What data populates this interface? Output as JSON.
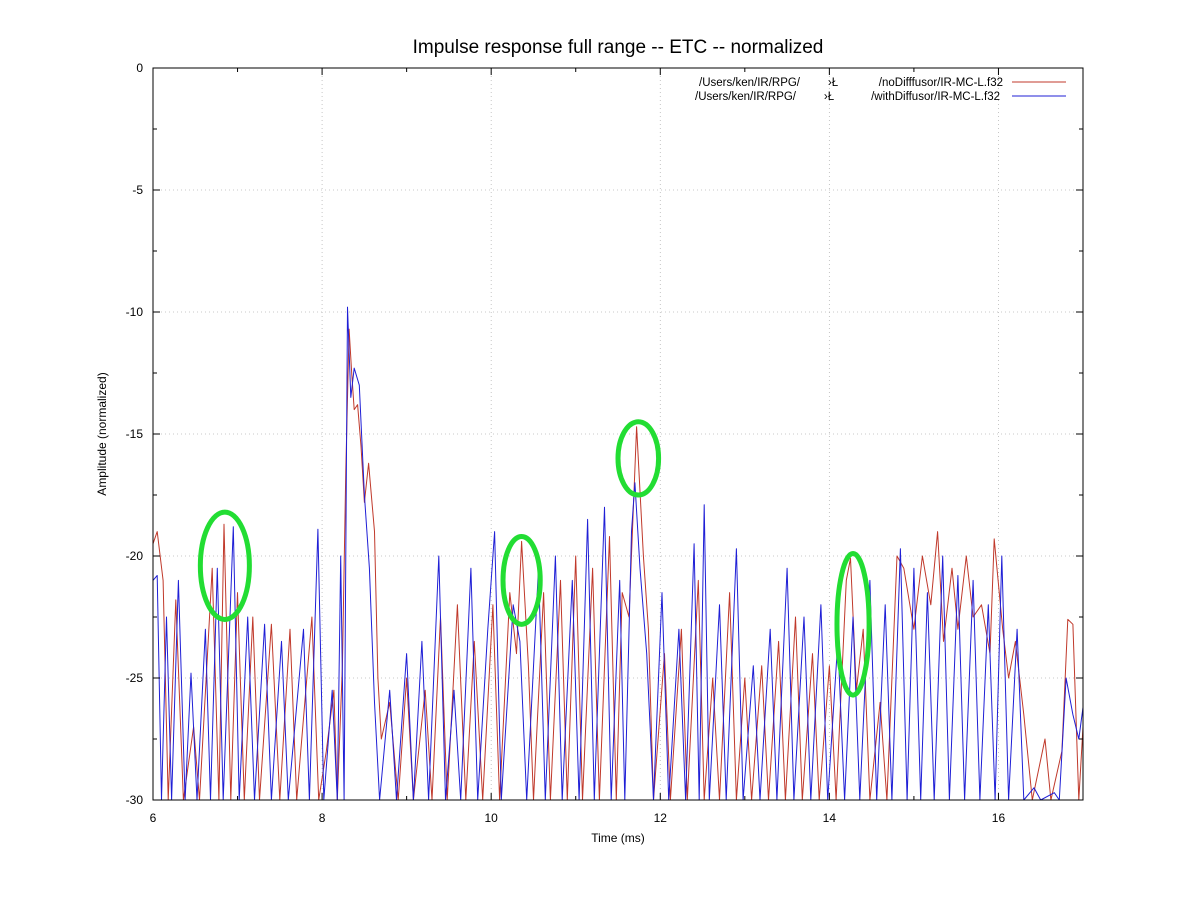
{
  "chart_data": {
    "type": "line",
    "title": "Impulse response full range -- ETC -- normalized",
    "xlabel": "Time (ms)",
    "ylabel": "Amplitude (normalized)",
    "xlim": [
      6,
      17
    ],
    "ylim": [
      -30,
      0
    ],
    "x_ticks": [
      "6",
      "8",
      "10",
      "12",
      "14",
      "16"
    ],
    "y_ticks": [
      "0",
      "-5",
      "-10",
      "-15",
      "-20",
      "-25",
      "-30"
    ],
    "grid": true,
    "legend_position": "top-right",
    "series": [
      {
        "name": "/Users/ken/IR/RPG/ ›Ł /noDifffusor/IR-MC-L.f32",
        "name_parts": [
          "/Users/ken/IR/RPG/",
          "›Ł",
          "/noDifffusor/IR-MC-L.f32"
        ],
        "color": "#c0392b",
        "peaks": [
          [
            6.0,
            -19.5
          ],
          [
            6.05,
            -19.0
          ],
          [
            6.12,
            -21.0
          ],
          [
            6.18,
            -30
          ],
          [
            6.27,
            -21.8
          ],
          [
            6.36,
            -30
          ],
          [
            6.48,
            -27.0
          ],
          [
            6.55,
            -30
          ],
          [
            6.7,
            -20.5
          ],
          [
            6.78,
            -30
          ],
          [
            6.84,
            -18.7
          ],
          [
            6.92,
            -30
          ],
          [
            7.0,
            -21.5
          ],
          [
            7.08,
            -30
          ],
          [
            7.18,
            -22.5
          ],
          [
            7.26,
            -30
          ],
          [
            7.4,
            -22.8
          ],
          [
            7.5,
            -30
          ],
          [
            7.62,
            -23.0
          ],
          [
            7.7,
            -30
          ],
          [
            7.88,
            -22.5
          ],
          [
            7.96,
            -30
          ],
          [
            8.05,
            -28.0
          ],
          [
            8.14,
            -25.5
          ],
          [
            8.18,
            -30
          ],
          [
            8.24,
            -24.5
          ],
          [
            8.28,
            -16.5
          ],
          [
            8.32,
            -10.7
          ],
          [
            8.35,
            -12.5
          ],
          [
            8.38,
            -14.0
          ],
          [
            8.42,
            -13.8
          ],
          [
            8.46,
            -15.5
          ],
          [
            8.5,
            -17.8
          ],
          [
            8.55,
            -16.2
          ],
          [
            8.62,
            -19.0
          ],
          [
            8.66,
            -25.0
          ],
          [
            8.7,
            -27.5
          ],
          [
            8.8,
            -26.0
          ],
          [
            8.9,
            -30
          ],
          [
            9.0,
            -25.0
          ],
          [
            9.08,
            -30
          ],
          [
            9.22,
            -25.5
          ],
          [
            9.3,
            -30
          ],
          [
            9.4,
            -22.5
          ],
          [
            9.48,
            -30
          ],
          [
            9.6,
            -22.0
          ],
          [
            9.7,
            -30
          ],
          [
            9.8,
            -23.5
          ],
          [
            9.9,
            -30
          ],
          [
            10.02,
            -22.0
          ],
          [
            10.1,
            -30
          ],
          [
            10.22,
            -21.5
          ],
          [
            10.3,
            -24.0
          ],
          [
            10.36,
            -19.4
          ],
          [
            10.44,
            -24.5
          ],
          [
            10.5,
            -30
          ],
          [
            10.62,
            -21.5
          ],
          [
            10.7,
            -30
          ],
          [
            10.82,
            -21.0
          ],
          [
            10.9,
            -30
          ],
          [
            11.0,
            -20.0
          ],
          [
            11.08,
            -30
          ],
          [
            11.2,
            -20.5
          ],
          [
            11.28,
            -30
          ],
          [
            11.4,
            -19.2
          ],
          [
            11.48,
            -30
          ],
          [
            11.55,
            -21.5
          ],
          [
            11.63,
            -22.5
          ],
          [
            11.72,
            -14.7
          ],
          [
            11.8,
            -20.0
          ],
          [
            11.86,
            -23.0
          ],
          [
            11.92,
            -30
          ],
          [
            12.05,
            -24.0
          ],
          [
            12.12,
            -30
          ],
          [
            12.25,
            -23.0
          ],
          [
            12.32,
            -30
          ],
          [
            12.45,
            -21.0
          ],
          [
            12.52,
            -30
          ],
          [
            12.62,
            -25.0
          ],
          [
            12.7,
            -30
          ],
          [
            12.82,
            -21.5
          ],
          [
            12.9,
            -30
          ],
          [
            13.0,
            -25.0
          ],
          [
            13.08,
            -30
          ],
          [
            13.2,
            -24.5
          ],
          [
            13.28,
            -30
          ],
          [
            13.4,
            -23.5
          ],
          [
            13.48,
            -30
          ],
          [
            13.6,
            -22.5
          ],
          [
            13.68,
            -30
          ],
          [
            13.8,
            -24.0
          ],
          [
            13.88,
            -30
          ],
          [
            14.0,
            -24.5
          ],
          [
            14.08,
            -30
          ],
          [
            14.2,
            -21.0
          ],
          [
            14.25,
            -20.1
          ],
          [
            14.32,
            -25.5
          ],
          [
            14.4,
            -23.0
          ],
          [
            14.48,
            -30
          ],
          [
            14.6,
            -26.0
          ],
          [
            14.68,
            -30
          ],
          [
            14.8,
            -20.0
          ],
          [
            14.88,
            -20.5
          ],
          [
            15.0,
            -23.0
          ],
          [
            15.1,
            -20.0
          ],
          [
            15.2,
            -22.0
          ],
          [
            15.28,
            -19.0
          ],
          [
            15.35,
            -23.5
          ],
          [
            15.45,
            -20.5
          ],
          [
            15.52,
            -23.0
          ],
          [
            15.62,
            -20.0
          ],
          [
            15.7,
            -22.5
          ],
          [
            15.8,
            -22.0
          ],
          [
            15.9,
            -24.0
          ],
          [
            15.95,
            -19.3
          ],
          [
            16.05,
            -23.0
          ],
          [
            16.12,
            -25.0
          ],
          [
            16.2,
            -23.5
          ],
          [
            16.3,
            -26.5
          ],
          [
            16.4,
            -30
          ],
          [
            16.55,
            -27.5
          ],
          [
            16.62,
            -30
          ],
          [
            16.75,
            -28.0
          ],
          [
            16.82,
            -22.6
          ],
          [
            16.88,
            -22.8
          ],
          [
            16.95,
            -30
          ],
          [
            17.0,
            -27.0
          ]
        ]
      },
      {
        "name": "/Users/ken/IR/RPG/ ›Ł /withDiffusor/IR-MC-L.f32",
        "name_parts": [
          "/Users/ken/IR/RPG/",
          "›Ł",
          "/withDiffusor/IR-MC-L.f32"
        ],
        "color": "#1f1fd6",
        "peaks": [
          [
            6.0,
            -21.0
          ],
          [
            6.05,
            -20.8
          ],
          [
            6.1,
            -30
          ],
          [
            6.16,
            -22.5
          ],
          [
            6.22,
            -30
          ],
          [
            6.3,
            -21.0
          ],
          [
            6.38,
            -30
          ],
          [
            6.45,
            -24.8
          ],
          [
            6.52,
            -30
          ],
          [
            6.62,
            -23.0
          ],
          [
            6.68,
            -30
          ],
          [
            6.76,
            -20.5
          ],
          [
            6.83,
            -30
          ],
          [
            6.95,
            -18.8
          ],
          [
            7.02,
            -30
          ],
          [
            7.12,
            -22.5
          ],
          [
            7.2,
            -30
          ],
          [
            7.32,
            -22.8
          ],
          [
            7.4,
            -30
          ],
          [
            7.52,
            -23.5
          ],
          [
            7.6,
            -30
          ],
          [
            7.78,
            -23.0
          ],
          [
            7.85,
            -30
          ],
          [
            7.95,
            -18.9
          ],
          [
            8.02,
            -30
          ],
          [
            8.12,
            -25.5
          ],
          [
            8.18,
            -30
          ],
          [
            8.22,
            -20.0
          ],
          [
            8.26,
            -30
          ],
          [
            8.3,
            -9.8
          ],
          [
            8.34,
            -13.5
          ],
          [
            8.38,
            -12.3
          ],
          [
            8.44,
            -13.0
          ],
          [
            8.5,
            -17.5
          ],
          [
            8.56,
            -20.5
          ],
          [
            8.62,
            -26.0
          ],
          [
            8.68,
            -30
          ],
          [
            8.8,
            -25.5
          ],
          [
            8.88,
            -30
          ],
          [
            9.0,
            -24.0
          ],
          [
            9.08,
            -30
          ],
          [
            9.18,
            -23.5
          ],
          [
            9.26,
            -30
          ],
          [
            9.38,
            -20.0
          ],
          [
            9.46,
            -30
          ],
          [
            9.56,
            -25.5
          ],
          [
            9.64,
            -30
          ],
          [
            9.76,
            -20.5
          ],
          [
            9.84,
            -30
          ],
          [
            9.96,
            -23.0
          ],
          [
            10.04,
            -19.0
          ],
          [
            10.12,
            -30
          ],
          [
            10.26,
            -22.0
          ],
          [
            10.34,
            -23.5
          ],
          [
            10.42,
            -30
          ],
          [
            10.56,
            -20.5
          ],
          [
            10.64,
            -30
          ],
          [
            10.76,
            -20.0
          ],
          [
            10.84,
            -30
          ],
          [
            10.96,
            -21.0
          ],
          [
            11.04,
            -30
          ],
          [
            11.14,
            -18.5
          ],
          [
            11.22,
            -30
          ],
          [
            11.34,
            -18.0
          ],
          [
            11.42,
            -30
          ],
          [
            11.52,
            -21.0
          ],
          [
            11.58,
            -30
          ],
          [
            11.66,
            -19.0
          ],
          [
            11.7,
            -17.0
          ],
          [
            11.76,
            -20.5
          ],
          [
            11.84,
            -24.0
          ],
          [
            11.92,
            -30
          ],
          [
            12.02,
            -21.5
          ],
          [
            12.1,
            -30
          ],
          [
            12.22,
            -23.0
          ],
          [
            12.3,
            -30
          ],
          [
            12.4,
            -19.5
          ],
          [
            12.46,
            -30
          ],
          [
            12.52,
            -17.9
          ],
          [
            12.58,
            -30
          ],
          [
            12.7,
            -22.0
          ],
          [
            12.78,
            -30
          ],
          [
            12.9,
            -19.7
          ],
          [
            12.98,
            -30
          ],
          [
            13.1,
            -24.5
          ],
          [
            13.18,
            -30
          ],
          [
            13.3,
            -23.0
          ],
          [
            13.38,
            -30
          ],
          [
            13.5,
            -20.5
          ],
          [
            13.58,
            -30
          ],
          [
            13.7,
            -22.5
          ],
          [
            13.78,
            -30
          ],
          [
            13.9,
            -22.0
          ],
          [
            13.98,
            -30
          ],
          [
            14.1,
            -23.5
          ],
          [
            14.18,
            -30
          ],
          [
            14.28,
            -22.5
          ],
          [
            14.36,
            -30
          ],
          [
            14.48,
            -21.0
          ],
          [
            14.56,
            -30
          ],
          [
            14.66,
            -22.0
          ],
          [
            14.74,
            -30
          ],
          [
            14.84,
            -19.7
          ],
          [
            14.92,
            -30
          ],
          [
            15.0,
            -20.5
          ],
          [
            15.08,
            -30
          ],
          [
            15.16,
            -21.5
          ],
          [
            15.24,
            -30
          ],
          [
            15.34,
            -20.0
          ],
          [
            15.42,
            -30
          ],
          [
            15.52,
            -20.8
          ],
          [
            15.6,
            -30
          ],
          [
            15.7,
            -21.0
          ],
          [
            15.78,
            -30
          ],
          [
            15.88,
            -22.0
          ],
          [
            15.96,
            -30
          ],
          [
            16.04,
            -20.0
          ],
          [
            16.12,
            -30
          ],
          [
            16.22,
            -23.0
          ],
          [
            16.3,
            -30
          ],
          [
            16.42,
            -29.5
          ],
          [
            16.5,
            -30
          ],
          [
            16.66,
            -29.7
          ],
          [
            16.72,
            -30
          ],
          [
            16.8,
            -25.0
          ],
          [
            16.88,
            -26.5
          ],
          [
            16.95,
            -27.5
          ],
          [
            17.0,
            -26.2
          ]
        ]
      }
    ],
    "highlights": [
      {
        "x": 6.85,
        "y": -20.4,
        "rx": 0.29,
        "ry": 2.2,
        "color": "#22dd33"
      },
      {
        "x": 10.36,
        "y": -21.0,
        "rx": 0.22,
        "ry": 1.8,
        "color": "#22dd33"
      },
      {
        "x": 11.74,
        "y": -16.0,
        "rx": 0.24,
        "ry": 1.5,
        "color": "#22dd33"
      },
      {
        "x": 14.28,
        "y": -22.8,
        "rx": 0.19,
        "ry": 2.9,
        "color": "#22dd33"
      }
    ]
  }
}
